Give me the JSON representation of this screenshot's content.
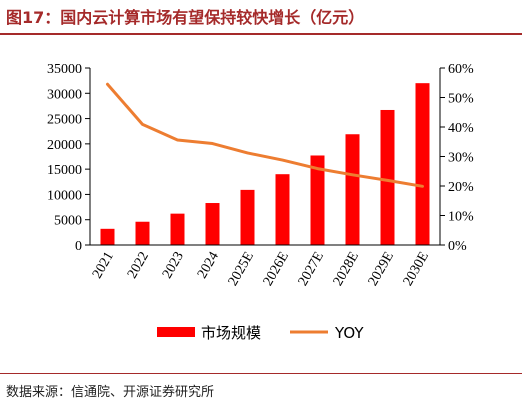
{
  "title": "图17：国内云计算市场有望保持较快增长（亿元）",
  "source": "数据来源：信通院、开源证券研究所",
  "colors": {
    "bar": "#ff0000",
    "line": "#ed7d31",
    "title": "#a52a2a"
  },
  "chart_data": {
    "type": "bar",
    "categories": [
      "2021",
      "2022",
      "2023",
      "2024",
      "2025E",
      "2026E",
      "2027E",
      "2028E",
      "2029E",
      "2030E"
    ],
    "series": [
      {
        "name": "市场规模",
        "type": "bar",
        "axis": "left",
        "values": [
          3200,
          4600,
          6200,
          8300,
          10900,
          14000,
          17700,
          21900,
          26700,
          32000
        ]
      },
      {
        "name": "YOY",
        "type": "line",
        "axis": "right",
        "values": [
          54.5,
          40.9,
          35.6,
          34.4,
          31.2,
          28.8,
          25.9,
          23.8,
          21.9,
          19.9
        ]
      }
    ],
    "y_left": {
      "min": 0,
      "max": 35000,
      "step": 5000,
      "ticks": [
        "0",
        "5000",
        "10000",
        "15000",
        "20000",
        "25000",
        "30000",
        "35000"
      ]
    },
    "y_right": {
      "min": 0,
      "max": 60,
      "step": 10,
      "ticks": [
        "0%",
        "10%",
        "20%",
        "30%",
        "40%",
        "50%",
        "60%"
      ]
    },
    "legend": {
      "position": "bottom",
      "items": [
        "市场规模",
        "YOY"
      ]
    },
    "grid": false
  }
}
